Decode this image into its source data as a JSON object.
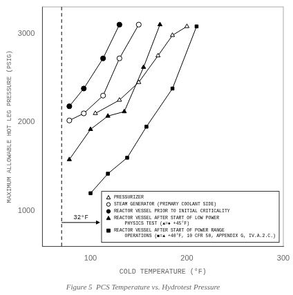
{
  "chart_data": {
    "type": "line",
    "title": "Figure 5  PCS Temperature vs. Hydrotest Pressure",
    "x_label": "COLD TEMPERATURE (°F)",
    "y_label": "MAXIMUM ALLOWABLE HOT LEG PRESSURE (PSIG)",
    "xlim": [
      50,
      300
    ],
    "ylim": [
      600,
      3300
    ],
    "xticks": [
      100,
      200,
      300
    ],
    "yticks": [
      1000,
      2000,
      3000
    ],
    "grid": false,
    "legend": "lower right",
    "series": [
      {
        "name": "PRESSURIZER",
        "color": "#000000",
        "marker": "triangle-open",
        "line_style": "solid",
        "x": [
          105,
          130,
          150,
          170,
          185,
          200
        ],
        "values": [
          2100,
          2250,
          2450,
          2750,
          2980,
          3080
        ]
      },
      {
        "name": "STEAM GENERATOR (PRIMARY COOLANT SIDE)",
        "color": "#000000",
        "marker": "circle-open",
        "line_style": "solid",
        "x": [
          78,
          93,
          113,
          130,
          150
        ],
        "values": [
          2020,
          2100,
          2300,
          2720,
          3100
        ]
      },
      {
        "name": "REACTOR VESSEL PRIOR TO INITIAL CRITICALITY",
        "color": "#000000",
        "marker": "circle-filled",
        "line_style": "solid",
        "x": [
          78,
          93,
          113,
          130
        ],
        "values": [
          2180,
          2380,
          2720,
          3100
        ]
      },
      {
        "name": "REACTOR VESSEL AFTER START OF LOW POWER\n    PHYSICS TEST (▲=● +45°F)",
        "color": "#000000",
        "marker": "triangle-filled",
        "line_style": "solid",
        "x": [
          78,
          100,
          118,
          135,
          155,
          172
        ],
        "values": [
          1580,
          1920,
          2070,
          2120,
          2620,
          3100
        ]
      },
      {
        "name": "REACTOR VESSEL AFTER START OF POWER RANGE\n    OPERATIONS (■=▲ +40°F, 10 CFR 50, APPENDIX G, IV.A.2.C.)",
        "color": "#000000",
        "marker": "square-filled",
        "line_style": "solid",
        "x": [
          100,
          118,
          138,
          158,
          185,
          210
        ],
        "values": [
          1200,
          1420,
          1600,
          1950,
          2380,
          3080
        ]
      }
    ],
    "annotations": [
      {
        "type": "vline",
        "x": 70,
        "line_style": "dashed"
      },
      {
        "type": "arrow",
        "from": 70,
        "to": 110,
        "y": 870,
        "text": "32°F"
      }
    ]
  }
}
